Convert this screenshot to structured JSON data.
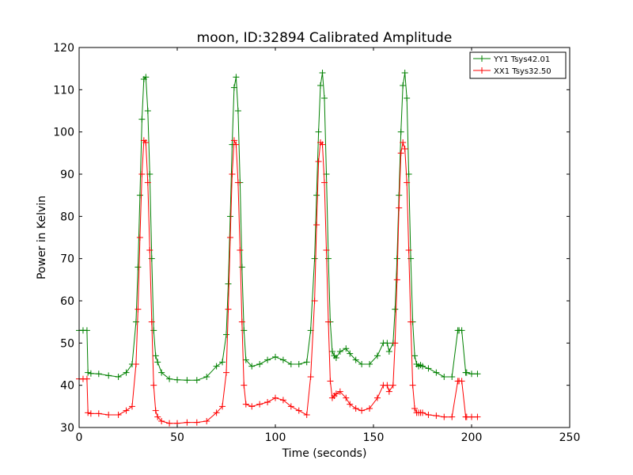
{
  "chart_data": {
    "type": "line",
    "title": "moon, ID:32894 Calibrated Amplitude",
    "xlabel": "Time (seconds)",
    "ylabel": "Power in Kelvin",
    "xlim": [
      0,
      250
    ],
    "ylim": [
      30,
      120
    ],
    "xticks": [
      "0",
      "50",
      "100",
      "150",
      "200",
      "250"
    ],
    "yticks": [
      "30",
      "40",
      "50",
      "60",
      "70",
      "80",
      "90",
      "100",
      "110",
      "120"
    ],
    "grid": false,
    "legend_position": "top-right",
    "marker": "plus",
    "series": [
      {
        "name": "YY1 Tsys42.01",
        "color": "#008000",
        "x": [
          0,
          2,
          4,
          4.5,
          6,
          10,
          15,
          20,
          24,
          27,
          29,
          30,
          31,
          32,
          33,
          34,
          35,
          36,
          37,
          38,
          39,
          40,
          42,
          46,
          50,
          55,
          60,
          65,
          70,
          73,
          75,
          76,
          77,
          78,
          79,
          80,
          81,
          82,
          83,
          84,
          85,
          88,
          92,
          96,
          100,
          104,
          108,
          112,
          116,
          118,
          120,
          121,
          122,
          123,
          124,
          125,
          126,
          127,
          128,
          129,
          130,
          131,
          133,
          136,
          138,
          141,
          144,
          148,
          152,
          155,
          157,
          158,
          160,
          161,
          162,
          163,
          164,
          165,
          166,
          167,
          168,
          169,
          170,
          171,
          172,
          173,
          174,
          175,
          178,
          182,
          186,
          190,
          193,
          193.6,
          195,
          197,
          197.5,
          200,
          203
        ],
        "y": [
          53,
          53,
          53,
          43,
          42.8,
          42.7,
          42.3,
          42,
          43,
          45,
          55,
          68,
          85,
          103,
          112.5,
          113,
          105,
          90,
          70,
          53,
          47,
          45.5,
          43,
          41.5,
          41.3,
          41.2,
          41.2,
          42,
          44.5,
          45.5,
          52,
          64,
          80,
          97,
          110.5,
          113,
          105,
          88,
          68,
          53,
          46,
          44.5,
          45,
          46,
          46.7,
          46,
          45,
          45,
          45.5,
          53,
          70,
          85,
          100,
          111,
          114,
          108,
          90,
          70,
          55,
          48,
          47,
          46.5,
          48,
          48.7,
          47.5,
          46,
          45,
          45,
          47,
          50,
          50,
          48,
          50,
          58,
          70,
          85,
          100,
          111,
          114,
          108,
          90,
          70,
          55,
          47,
          45,
          44.5,
          44.8,
          44.5,
          44,
          43,
          42,
          42,
          53,
          53,
          53,
          43,
          43,
          42.7,
          42.7
        ]
      },
      {
        "name": "XX1 Tsys32.50",
        "color": "#ff0000",
        "x": [
          0,
          2,
          4,
          4.5,
          6,
          10,
          15,
          20,
          24,
          27,
          29,
          30,
          31,
          32,
          33,
          34,
          35,
          36,
          37,
          38,
          39,
          40,
          42,
          46,
          50,
          55,
          60,
          65,
          70,
          73,
          75,
          76,
          77,
          78,
          79,
          80,
          81,
          82,
          83,
          84,
          85,
          88,
          92,
          96,
          100,
          104,
          108,
          112,
          116,
          118,
          120,
          121,
          122,
          123,
          124,
          125,
          126,
          127,
          128,
          129,
          130,
          131,
          133,
          136,
          138,
          141,
          144,
          148,
          152,
          155,
          157,
          158,
          160,
          161,
          162,
          163,
          164,
          165,
          166,
          167,
          168,
          169,
          170,
          171,
          172,
          173,
          174,
          175,
          178,
          182,
          186,
          190,
          193,
          193.6,
          195,
          197,
          197.5,
          200,
          203
        ],
        "y": [
          41.5,
          41.5,
          41.5,
          33.5,
          33.3,
          33.3,
          33,
          33,
          34,
          35,
          45,
          58,
          75,
          90,
          98,
          97.5,
          88,
          72,
          55,
          40,
          34,
          32.5,
          31.5,
          31,
          31,
          31.2,
          31.2,
          31.5,
          33.5,
          35,
          43,
          58,
          75,
          90,
          98,
          97,
          88,
          72,
          55,
          40,
          35.5,
          35,
          35.5,
          36,
          37,
          36.5,
          35,
          34,
          33,
          42,
          60,
          78,
          93,
          97.5,
          97,
          88,
          72,
          55,
          41,
          37,
          37.5,
          38,
          38.5,
          37,
          35.5,
          34.5,
          34,
          34.5,
          37,
          40,
          40,
          38.5,
          40,
          50,
          65,
          82,
          95,
          97.5,
          96,
          88,
          72,
          55,
          40,
          34.5,
          33.5,
          33.5,
          33.5,
          33.5,
          33,
          32.8,
          32.5,
          32.5,
          41,
          41,
          41,
          32.5,
          32.5,
          32.5,
          32.5
        ]
      }
    ]
  }
}
